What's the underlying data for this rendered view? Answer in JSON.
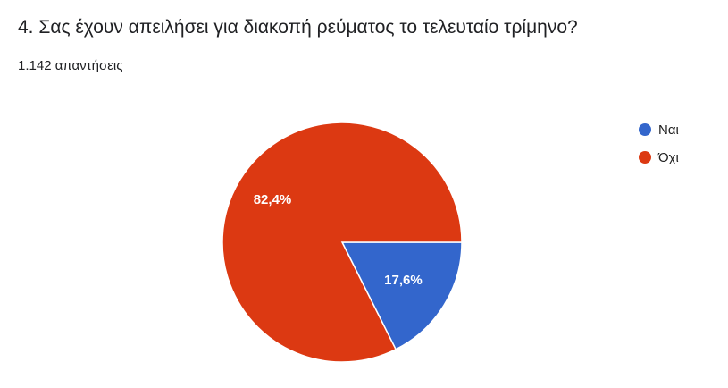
{
  "question": {
    "title": "4. Σας έχουν απειλήσει για διακοπή ρεύματος το τελευταίο τρίμηνο?",
    "responses": "1.142 απαντήσεις"
  },
  "chart_data": {
    "type": "pie",
    "categories": [
      "Ναι",
      "Όχι"
    ],
    "values": [
      17.6,
      82.4
    ],
    "data_labels": [
      "17,6%",
      "82,4%"
    ],
    "colors": [
      "#3366cc",
      "#dc3912"
    ],
    "legend_position": "right"
  }
}
